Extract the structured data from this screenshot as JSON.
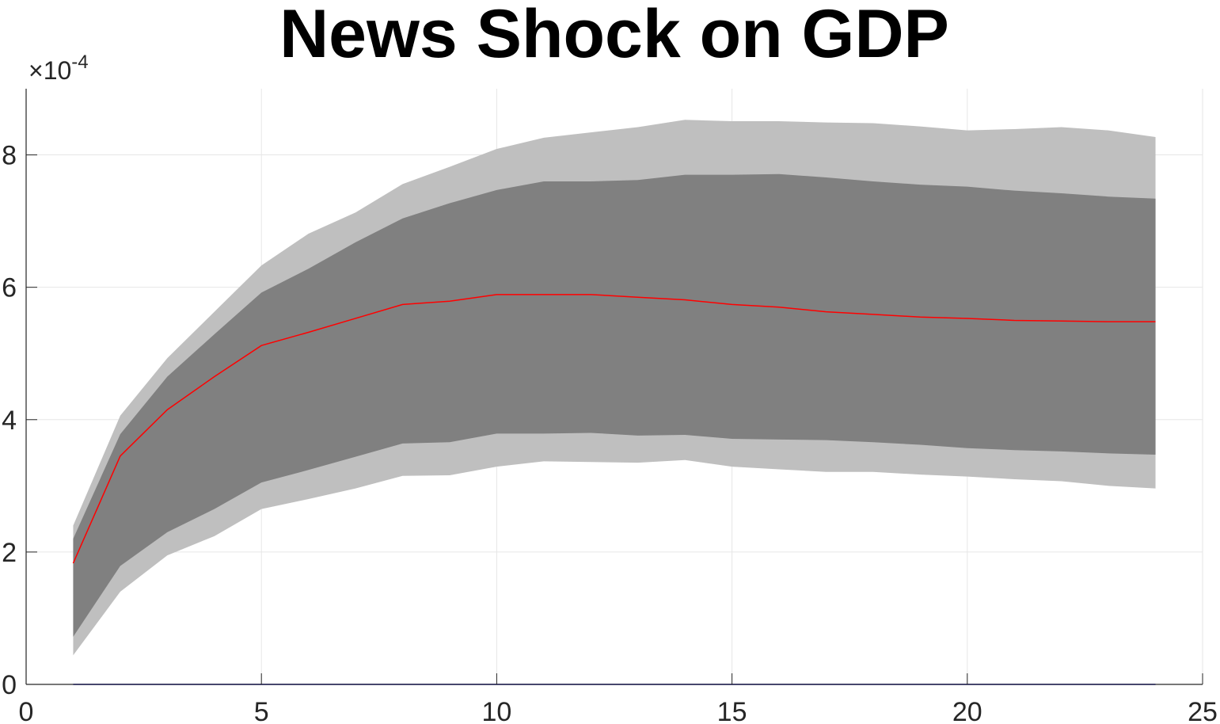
{
  "chart_data": {
    "type": "area",
    "title": "News Shock on GDP",
    "xlabel": "",
    "ylabel": "",
    "y_multiplier_label": "10",
    "y_multiplier_exponent": "-4",
    "y_multiplier_symbol": "×",
    "xlim": [
      0,
      25
    ],
    "ylim": [
      0,
      9
    ],
    "y_scale_factor": 0.0001,
    "x_ticks": [
      0,
      5,
      10,
      15,
      20,
      25
    ],
    "y_ticks": [
      0,
      2,
      4,
      6,
      8
    ],
    "x_tick_labels": [
      "0",
      "5",
      "10",
      "15",
      "20",
      "25"
    ],
    "y_tick_labels": [
      "0",
      "2",
      "4",
      "6",
      "8"
    ],
    "grid": true,
    "x": [
      1,
      2,
      3,
      4,
      5,
      6,
      7,
      8,
      9,
      10,
      11,
      12,
      13,
      14,
      15,
      16,
      17,
      18,
      19,
      20,
      21,
      22,
      23,
      24
    ],
    "series": [
      {
        "role": "outer-band-upper",
        "color": "#bfbfbf",
        "values": [
          2.4,
          4.06,
          4.93,
          5.63,
          6.33,
          6.81,
          7.13,
          7.56,
          7.82,
          8.09,
          8.26,
          8.34,
          8.42,
          8.53,
          8.51,
          8.51,
          8.49,
          8.48,
          8.43,
          8.37,
          8.39,
          8.42,
          8.37,
          8.27
        ]
      },
      {
        "role": "outer-band-lower",
        "color": "#bfbfbf",
        "values": [
          0.44,
          1.4,
          1.95,
          2.24,
          2.65,
          2.8,
          2.96,
          3.15,
          3.16,
          3.29,
          3.37,
          3.36,
          3.35,
          3.39,
          3.29,
          3.25,
          3.21,
          3.21,
          3.17,
          3.14,
          3.1,
          3.07,
          3.0,
          2.96
        ]
      },
      {
        "role": "inner-band-upper",
        "color": "#808080",
        "values": [
          2.2,
          3.78,
          4.65,
          5.29,
          5.92,
          6.28,
          6.68,
          7.04,
          7.27,
          7.47,
          7.6,
          7.6,
          7.62,
          7.7,
          7.7,
          7.71,
          7.66,
          7.6,
          7.55,
          7.52,
          7.46,
          7.42,
          7.37,
          7.34
        ]
      },
      {
        "role": "inner-band-lower",
        "color": "#808080",
        "values": [
          0.72,
          1.79,
          2.3,
          2.65,
          3.05,
          3.24,
          3.44,
          3.64,
          3.66,
          3.79,
          3.79,
          3.8,
          3.76,
          3.77,
          3.71,
          3.7,
          3.69,
          3.66,
          3.62,
          3.57,
          3.54,
          3.52,
          3.49,
          3.47
        ]
      },
      {
        "role": "median",
        "color": "#ff0000",
        "values": [
          1.83,
          3.45,
          4.15,
          4.65,
          5.12,
          5.32,
          5.53,
          5.74,
          5.79,
          5.89,
          5.89,
          5.89,
          5.85,
          5.81,
          5.74,
          5.7,
          5.63,
          5.59,
          5.55,
          5.53,
          5.5,
          5.49,
          5.48,
          5.48
        ]
      },
      {
        "role": "zero-line",
        "color": "#0000cc",
        "values": [
          0,
          0,
          0,
          0,
          0,
          0,
          0,
          0,
          0,
          0,
          0,
          0,
          0,
          0,
          0,
          0,
          0,
          0,
          0,
          0,
          0,
          0,
          0,
          0
        ]
      }
    ]
  }
}
